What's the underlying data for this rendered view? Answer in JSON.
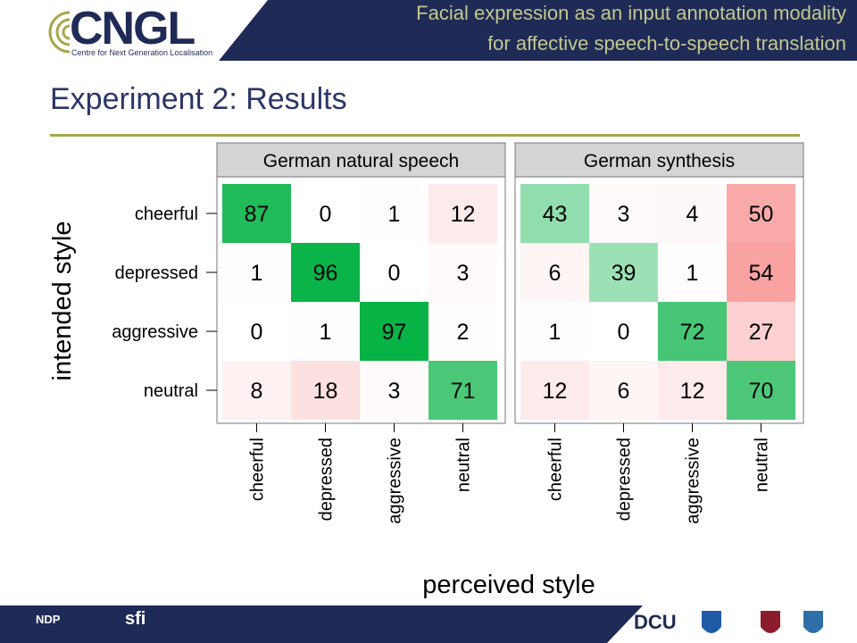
{
  "header": {
    "logo_text": "CNGL",
    "logo_subtitle": "Centre for Next Generation Localisation",
    "title_line1": "Facial expression as an input annotation modality",
    "title_line2": "for affective speech-to-speech translation"
  },
  "slide": {
    "title": "Experiment 2: Results"
  },
  "footer": {
    "logos": [
      "NDP",
      "sfi",
      "DCU",
      "UCD",
      "Trinity College Dublin crest",
      "Dublin City crest"
    ]
  },
  "colors": {
    "header_dark": "#1f2a57",
    "title_accent": "#c3c98a",
    "rule": "#a9a64a",
    "green_high": "#00b140",
    "red_high": "#f8a0a0"
  },
  "chart_data": {
    "type": "heatmap",
    "xlabel": "perceived style",
    "ylabel": "intended style",
    "categories": [
      "cheerful",
      "depressed",
      "aggressive",
      "neutral"
    ],
    "panels": [
      {
        "title": "German natural speech",
        "rows": [
          [
            87,
            0,
            1,
            12
          ],
          [
            1,
            96,
            0,
            3
          ],
          [
            0,
            1,
            97,
            2
          ],
          [
            8,
            18,
            3,
            71
          ]
        ]
      },
      {
        "title": "German synthesis",
        "rows": [
          [
            43,
            3,
            4,
            50
          ],
          [
            6,
            39,
            1,
            54
          ],
          [
            1,
            0,
            72,
            27
          ],
          [
            12,
            6,
            12,
            70
          ]
        ]
      }
    ]
  }
}
